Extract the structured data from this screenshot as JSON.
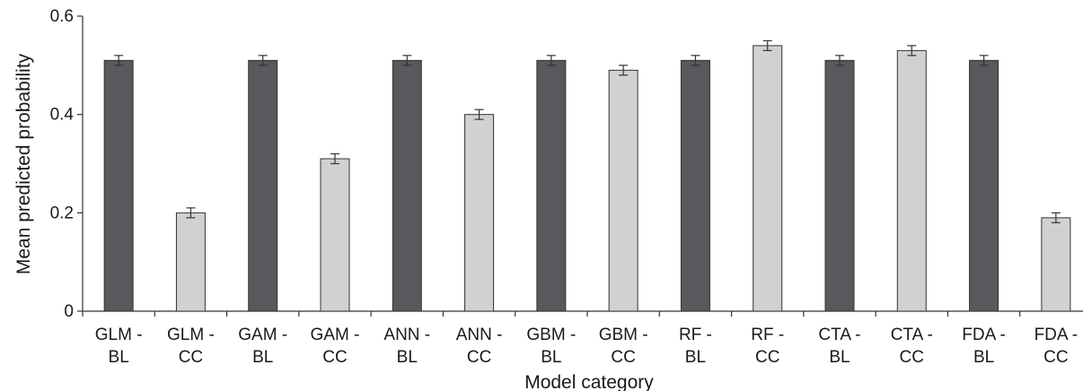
{
  "chart_data": {
    "type": "bar",
    "title": "",
    "xlabel": "Model category",
    "ylabel": "Mean predicted probability",
    "ylim": [
      0,
      0.6
    ],
    "yticks": [
      "0",
      "0.2",
      "0.4",
      "0.6"
    ],
    "grid": false,
    "categories": [
      [
        "GLM -",
        "BL"
      ],
      [
        "GLM -",
        "CC"
      ],
      [
        "GAM -",
        "BL"
      ],
      [
        "GAM -",
        "CC"
      ],
      [
        "ANN -",
        "BL"
      ],
      [
        "ANN -",
        "CC"
      ],
      [
        "GBM -",
        "BL"
      ],
      [
        "GBM -",
        "CC"
      ],
      [
        "RF -",
        "BL"
      ],
      [
        "RF -",
        "CC"
      ],
      [
        "CTA -",
        "BL"
      ],
      [
        "CTA -",
        "CC"
      ],
      [
        "FDA -",
        "BL"
      ],
      [
        "FDA -",
        "CC"
      ]
    ],
    "values": [
      0.51,
      0.2,
      0.51,
      0.31,
      0.51,
      0.4,
      0.51,
      0.49,
      0.51,
      0.54,
      0.51,
      0.53,
      0.51,
      0.19
    ],
    "errors": [
      0.01,
      0.01,
      0.01,
      0.01,
      0.01,
      0.01,
      0.01,
      0.01,
      0.01,
      0.01,
      0.01,
      0.01,
      0.01,
      0.01
    ],
    "colors": {
      "BL": "#58585d",
      "CC": "#d0d1d3"
    }
  }
}
